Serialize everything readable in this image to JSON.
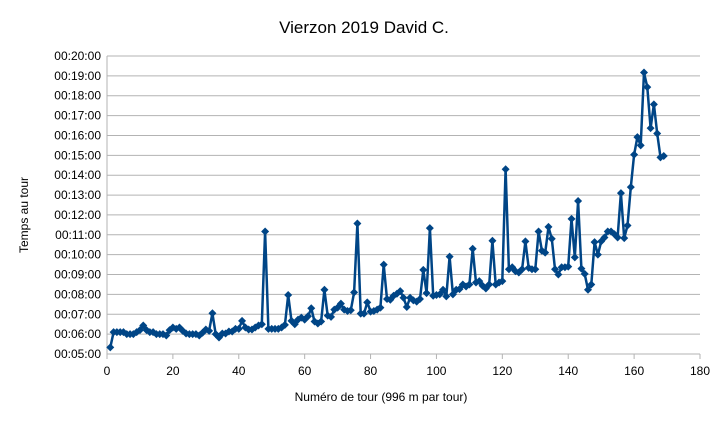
{
  "chart_data": {
    "type": "line",
    "title": "Vierzon 2019 David C.",
    "xlabel": "Numéro de tour (996 m par tour)",
    "ylabel": "Temps au tour",
    "xlim": [
      0,
      180
    ],
    "ylim_seconds": [
      300,
      1200
    ],
    "x_ticks": [
      "0",
      "20",
      "40",
      "60",
      "80",
      "100",
      "120",
      "140",
      "160",
      "180"
    ],
    "y_ticks": [
      "00:05:00",
      "00:06:00",
      "00:07:00",
      "00:08:00",
      "00:09:00",
      "00:10:00",
      "00:11:00",
      "00:12:00",
      "00:13:00",
      "00:14:00",
      "00:15:00",
      "00:16:00",
      "00:17:00",
      "00:18:00",
      "00:19:00",
      "00:20:00"
    ],
    "grid": "horizontal",
    "legend": "none",
    "series": [
      {
        "color": "#004586",
        "marker": "diamond",
        "x": [
          1,
          2,
          3,
          4,
          5,
          6,
          7,
          8,
          9,
          10,
          11,
          12,
          13,
          14,
          15,
          16,
          17,
          18,
          19,
          20,
          21,
          22,
          23,
          24,
          25,
          26,
          27,
          28,
          29,
          30,
          31,
          32,
          33,
          34,
          35,
          36,
          37,
          38,
          39,
          40,
          41,
          42,
          43,
          44,
          45,
          46,
          47,
          48,
          49,
          50,
          51,
          52,
          53,
          54,
          55,
          56,
          57,
          58,
          59,
          60,
          61,
          62,
          63,
          64,
          65,
          66,
          67,
          68,
          69,
          70,
          71,
          72,
          73,
          74,
          75,
          76,
          77,
          78,
          79,
          80,
          81,
          82,
          83,
          84,
          85,
          86,
          87,
          88,
          89,
          90,
          91,
          92,
          93,
          94,
          95,
          96,
          97,
          98,
          99,
          100,
          101,
          102,
          103,
          104,
          105,
          106,
          107,
          108,
          109,
          110,
          111,
          112,
          113,
          114,
          115,
          116,
          117,
          118,
          119,
          120,
          121,
          122,
          123,
          124,
          125,
          126,
          127,
          128,
          129,
          130,
          131,
          132,
          133,
          134,
          135,
          136,
          137,
          138,
          139,
          140,
          141,
          142,
          143,
          144,
          145,
          146,
          147,
          148,
          149,
          150,
          151,
          152,
          153,
          154,
          155,
          156,
          157,
          158,
          159,
          160,
          161,
          162,
          163,
          164,
          165,
          166,
          167,
          168,
          169
        ],
        "values_seconds": [
          320,
          366,
          366,
          366,
          366,
          360,
          360,
          360,
          366,
          372,
          386,
          372,
          366,
          366,
          360,
          360,
          360,
          356,
          372,
          380,
          376,
          380,
          370,
          362,
          360,
          360,
          360,
          356,
          364,
          374,
          370,
          423,
          360,
          350,
          362,
          362,
          368,
          368,
          376,
          376,
          400,
          380,
          374,
          374,
          380,
          386,
          390,
          670,
          376,
          376,
          376,
          376,
          380,
          388,
          478,
          400,
          390,
          404,
          410,
          404,
          414,
          438,
          398,
          392,
          398,
          494,
          416,
          412,
          434,
          440,
          452,
          434,
          430,
          432,
          486,
          694,
          422,
          422,
          456,
          428,
          430,
          434,
          440,
          570,
          466,
          464,
          476,
          482,
          490,
          470,
          442,
          470,
          462,
          458,
          466,
          554,
          484,
          680,
          476,
          478,
          480,
          494,
          474,
          594,
          480,
          494,
          496,
          510,
          504,
          510,
          618,
          516,
          520,
          506,
          498,
          510,
          642,
          510,
          516,
          520,
          858,
          556,
          562,
          550,
          546,
          556,
          640,
          560,
          556,
          556,
          670,
          612,
          606,
          684,
          648,
          556,
          540,
          562,
          562,
          564,
          708,
          592,
          762,
          558,
          542,
          494,
          510,
          638,
          600,
          640,
          652,
          670,
          670,
          662,
          652,
          786,
          650,
          688,
          804,
          902,
          955,
          930,
          1150,
          1106,
          982,
          1054,
          966,
          894,
          898
        ]
      }
    ]
  }
}
